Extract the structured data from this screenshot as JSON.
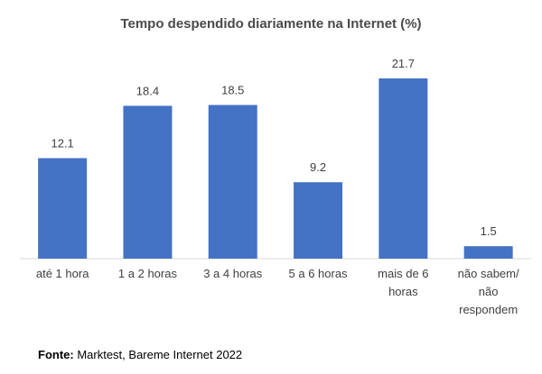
{
  "chart_data": {
    "type": "bar",
    "title": "Tempo despendido diariamente na Internet (%)",
    "categories": [
      "até 1 hora",
      "1 a 2 horas",
      "3 a 4 horas",
      "5 a 6 horas",
      "mais de 6 horas",
      "não sabem/ não respondem"
    ],
    "category_lines": [
      [
        "até 1 hora"
      ],
      [
        "1 a 2 horas"
      ],
      [
        "3 a 4 horas"
      ],
      [
        "5 a 6 horas"
      ],
      [
        "mais de 6",
        "horas"
      ],
      [
        "não sabem/",
        "não",
        "respondem"
      ]
    ],
    "values": [
      12.1,
      18.4,
      18.5,
      9.2,
      21.7,
      1.5
    ],
    "value_labels": [
      "12.1",
      "18.4",
      "18.5",
      "9.2",
      "21.7",
      "1.5"
    ],
    "xlabel": "",
    "ylabel": "",
    "ylim": [
      0,
      21.7
    ],
    "grid": false,
    "legend": "none",
    "bar_color": "#4472c4"
  },
  "source": {
    "label": "Fonte:",
    "text": " Marktest, Bareme Internet 2022"
  }
}
